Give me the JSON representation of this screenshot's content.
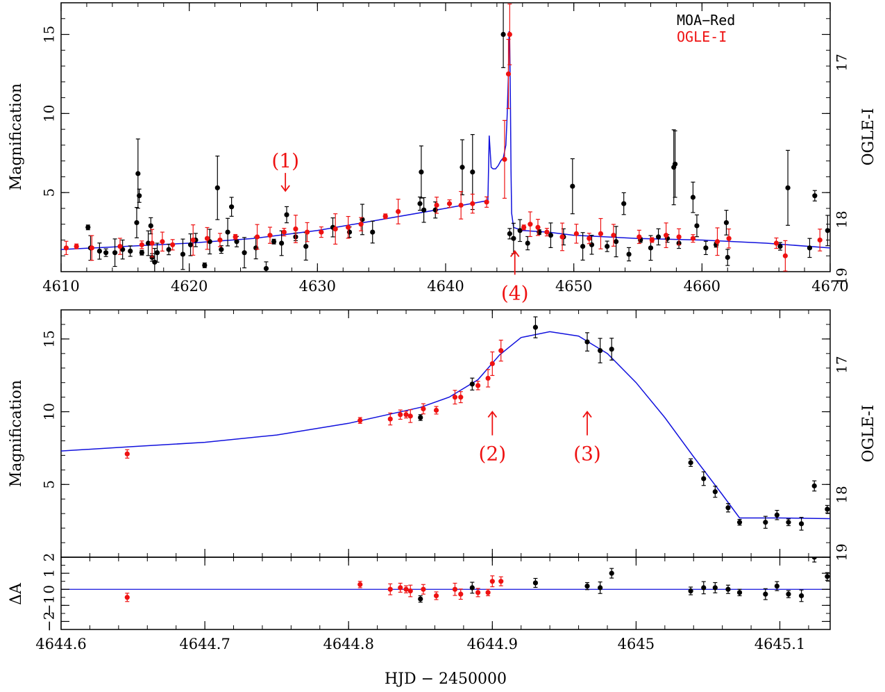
{
  "colors": {
    "moa": "#000000",
    "ogle": "#ee1111",
    "model": "#1010dd",
    "axis": "#000000"
  },
  "chart_data": [
    {
      "type": "scatter",
      "panel": "top",
      "ylabel": "Magnification",
      "right_label": "OGLE-I",
      "xlim": [
        4610,
        4670
      ],
      "ylim": [
        0,
        17
      ],
      "x_ticks": [
        "4610",
        "4620",
        "4630",
        "4640",
        "4650",
        "4660",
        "4670"
      ],
      "y_ticks": [
        "5",
        "10",
        "15"
      ],
      "right_ticks": [
        "17",
        "18",
        "19"
      ],
      "legend": [
        {
          "label": "MOA−Red",
          "color": "#000000"
        },
        {
          "label": "OGLE-I",
          "color": "#ee1111"
        }
      ],
      "legend_placement": "top-right",
      "annotations": [
        {
          "text": "(1)",
          "x": 4627.5,
          "y": 5.1,
          "dir": "down"
        },
        {
          "text": "(4)",
          "x": 4645.4,
          "y": 1.3,
          "dir": "up"
        }
      ],
      "model": {
        "x": [
          4610,
          4615,
          4620,
          4625,
          4630,
          4635,
          4640,
          4643.3,
          4643.4,
          4643.55,
          4643.7,
          4643.9,
          4644.1,
          4644.3,
          4644.5,
          4644.7,
          4644.8,
          4644.9,
          4644.95,
          4645.0,
          4645.05,
          4645.1,
          4645.15,
          4645.3,
          4646,
          4648,
          4650,
          4655,
          4660,
          4665,
          4670
        ],
        "y": [
          1.4,
          1.6,
          1.8,
          2.1,
          2.6,
          3.3,
          4.0,
          4.5,
          8.6,
          6.6,
          6.5,
          6.5,
          6.7,
          7.0,
          7.2,
          8.0,
          9.8,
          12.5,
          15.2,
          14.8,
          11.0,
          6.4,
          3.7,
          2.8,
          2.6,
          2.5,
          2.3,
          2.1,
          2.0,
          1.8,
          1.5
        ]
      },
      "series": [
        {
          "name": "MOA−Red",
          "color": "#000000",
          "x": [
            4612.1,
            4612.3,
            4613.0,
            4613.5,
            4614.2,
            4614.8,
            4615.4,
            4615.9,
            4616.0,
            4616.1,
            4616.3,
            4616.8,
            4617.0,
            4617.1,
            4617.3,
            4617.5,
            4618.4,
            4619.5,
            4620.1,
            4620.5,
            4621.2,
            4621.6,
            4622.2,
            4622.5,
            4623.0,
            4623.3,
            4623.7,
            4624.3,
            4625.2,
            4626.0,
            4626.6,
            4627.2,
            4627.6,
            4628.3,
            4629.1,
            4631.2,
            4632.5,
            4633.5,
            4634.3,
            4638.0,
            4638.1,
            4638.3,
            4639.2,
            4641.3,
            4642.1,
            4644.5,
            4645.0,
            4645.3,
            4645.8,
            4646.4,
            4647.3,
            4648.2,
            4649.2,
            4649.9,
            4650.7,
            4651.4,
            4652.6,
            4653.3,
            4653.9,
            4654.3,
            4655.2,
            4656.0,
            4656.6,
            4657.3,
            4657.8,
            4657.9,
            4658.2,
            4659.3,
            4659.6,
            4660.3,
            4661.1,
            4661.9,
            4662.0,
            4666.1,
            4666.7,
            4668.4,
            4668.8,
            4669.8
          ],
          "y": [
            2.8,
            1.5,
            1.3,
            1.2,
            1.2,
            1.4,
            1.3,
            3.1,
            6.2,
            4.8,
            1.2,
            1.8,
            2.9,
            0.9,
            0.6,
            1.2,
            1.4,
            1.1,
            1.7,
            2.0,
            0.4,
            1.9,
            5.3,
            1.4,
            2.5,
            4.1,
            1.9,
            1.2,
            1.5,
            0.2,
            1.9,
            1.8,
            3.6,
            2.2,
            1.6,
            2.8,
            2.5,
            3.3,
            2.5,
            4.3,
            6.3,
            3.9,
            3.9,
            6.6,
            6.3,
            15.0,
            2.4,
            2.1,
            2.6,
            1.8,
            2.5,
            2.3,
            2.2,
            5.4,
            1.6,
            1.7,
            1.6,
            1.9,
            4.3,
            1.1,
            2.0,
            1.5,
            2.2,
            2.1,
            6.6,
            6.8,
            1.8,
            4.7,
            2.9,
            1.5,
            1.7,
            3.1,
            0.9,
            1.6,
            5.3,
            1.5,
            4.8,
            2.6
          ]
        },
        {
          "name": "OGLE-I",
          "color": "#ee1111",
          "x": [
            4610.4,
            4611.2,
            4612.4,
            4614.6,
            4616.3,
            4617.1,
            4617.9,
            4618.7,
            4620.3,
            4621.4,
            4622.4,
            4623.6,
            4625.3,
            4626.3,
            4627.4,
            4628.3,
            4629.2,
            4630.3,
            4631.4,
            4632.4,
            4633.4,
            4635.3,
            4636.3,
            4639.3,
            4640.3,
            4641.2,
            4642.1,
            4643.2,
            4644.6,
            4644.9,
            4645.0,
            4646.1,
            4646.6,
            4647.2,
            4647.9,
            4649.1,
            4650.2,
            4651.2,
            4652.1,
            4653.1,
            4655.1,
            4656.1,
            4657.2,
            4658.2,
            4659.3,
            4661.2,
            4662.1,
            4665.8,
            4666.5,
            4669.2
          ],
          "y": [
            1.5,
            1.6,
            1.5,
            1.6,
            1.7,
            1.8,
            1.9,
            1.7,
            2.0,
            2.1,
            2.0,
            2.2,
            2.2,
            2.3,
            2.5,
            2.7,
            2.5,
            2.5,
            2.7,
            2.8,
            3.0,
            3.5,
            3.8,
            4.2,
            4.3,
            4.2,
            4.3,
            4.4,
            7.1,
            12.5,
            15.0,
            2.8,
            3.0,
            2.8,
            2.5,
            2.2,
            2.4,
            2.1,
            2.4,
            2.3,
            2.2,
            2.0,
            2.3,
            2.2,
            2.1,
            1.9,
            2.1,
            1.8,
            1.0,
            2.0
          ]
        }
      ]
    },
    {
      "type": "scatter",
      "panel": "middle",
      "ylabel": "Magnification",
      "right_label": "OGLE-I",
      "xlim": [
        4644.6,
        4645.135
      ],
      "ylim": [
        0,
        17
      ],
      "y_ticks": [
        "5",
        "10",
        "15"
      ],
      "right_ticks": [
        "17",
        "18",
        "19"
      ],
      "annotations": [
        {
          "text": "(2)",
          "x": 4644.9,
          "y": 10.0,
          "dir": "up"
        },
        {
          "text": "(3)",
          "x": 4644.966,
          "y": 10.0,
          "dir": "up"
        }
      ],
      "model": {
        "x": [
          4644.6,
          4644.65,
          4644.7,
          4644.75,
          4644.8,
          4644.85,
          4644.87,
          4644.89,
          4644.905,
          4644.92,
          4644.94,
          4644.96,
          4644.98,
          4645.0,
          4645.02,
          4645.04,
          4645.06,
          4645.072,
          4645.08,
          4645.1,
          4645.135
        ],
        "y": [
          7.3,
          7.6,
          7.9,
          8.4,
          9.2,
          10.3,
          11.0,
          12.2,
          13.9,
          15.1,
          15.5,
          15.2,
          14.0,
          12.0,
          9.6,
          6.9,
          4.3,
          2.7,
          2.7,
          2.7,
          2.65
        ]
      },
      "series": [
        {
          "name": "MOA−Red",
          "color": "#000000",
          "x": [
            4644.85,
            4644.886,
            4644.93,
            4644.966,
            4644.975,
            4644.983,
            4645.038,
            4645.047,
            4645.055,
            4645.064,
            4645.072,
            4645.09,
            4645.098,
            4645.106,
            4645.115,
            4645.124,
            4645.133
          ],
          "y": [
            9.6,
            11.9,
            15.8,
            14.8,
            14.2,
            14.3,
            6.5,
            5.4,
            4.5,
            3.4,
            2.4,
            2.4,
            2.9,
            2.4,
            2.3,
            4.9,
            3.3
          ]
        },
        {
          "name": "OGLE-I",
          "color": "#ee1111",
          "x": [
            4644.646,
            4644.808,
            4644.829,
            4644.836,
            4644.84,
            4644.843,
            4644.852,
            4644.861,
            4644.874,
            4644.878,
            4644.89,
            4644.897,
            4644.9,
            4644.906
          ],
          "y": [
            7.1,
            9.4,
            9.5,
            9.8,
            9.8,
            9.7,
            10.2,
            10.1,
            11.0,
            11.0,
            11.8,
            12.3,
            13.3,
            14.2
          ]
        }
      ]
    },
    {
      "type": "scatter",
      "panel": "residuals",
      "ylabel": "ΔA",
      "xlabel": "HJD − 2450000",
      "xlim": [
        4644.6,
        4645.135
      ],
      "ylim": [
        -2.5,
        2.0
      ],
      "x_ticks": [
        "4644.6",
        "4644.7",
        "4644.8",
        "4644.9",
        "4645",
        "4645.1"
      ],
      "y_ticks": [
        "−2",
        "−1",
        "0",
        "1",
        "2"
      ],
      "series": [
        {
          "name": "MOA−Red",
          "color": "#000000",
          "x": [
            4644.85,
            4644.886,
            4644.93,
            4644.966,
            4644.975,
            4644.983,
            4645.038,
            4645.047,
            4645.055,
            4645.064,
            4645.072,
            4645.09,
            4645.098,
            4645.106,
            4645.115,
            4645.124,
            4645.133
          ],
          "y": [
            -0.6,
            0.1,
            0.4,
            0.2,
            0.1,
            1.0,
            -0.1,
            0.1,
            0.1,
            0.0,
            -0.2,
            -0.3,
            0.2,
            -0.3,
            -0.4,
            2.0,
            0.8
          ]
        },
        {
          "name": "OGLE-I",
          "color": "#ee1111",
          "x": [
            4644.646,
            4644.808,
            4644.829,
            4644.836,
            4644.84,
            4644.843,
            4644.852,
            4644.861,
            4644.874,
            4644.878,
            4644.89,
            4644.897,
            4644.9,
            4644.906
          ],
          "y": [
            -0.5,
            0.3,
            0.0,
            0.1,
            0.0,
            -0.1,
            0.0,
            -0.4,
            0.0,
            -0.3,
            -0.2,
            -0.2,
            0.5,
            0.5
          ]
        }
      ]
    }
  ]
}
